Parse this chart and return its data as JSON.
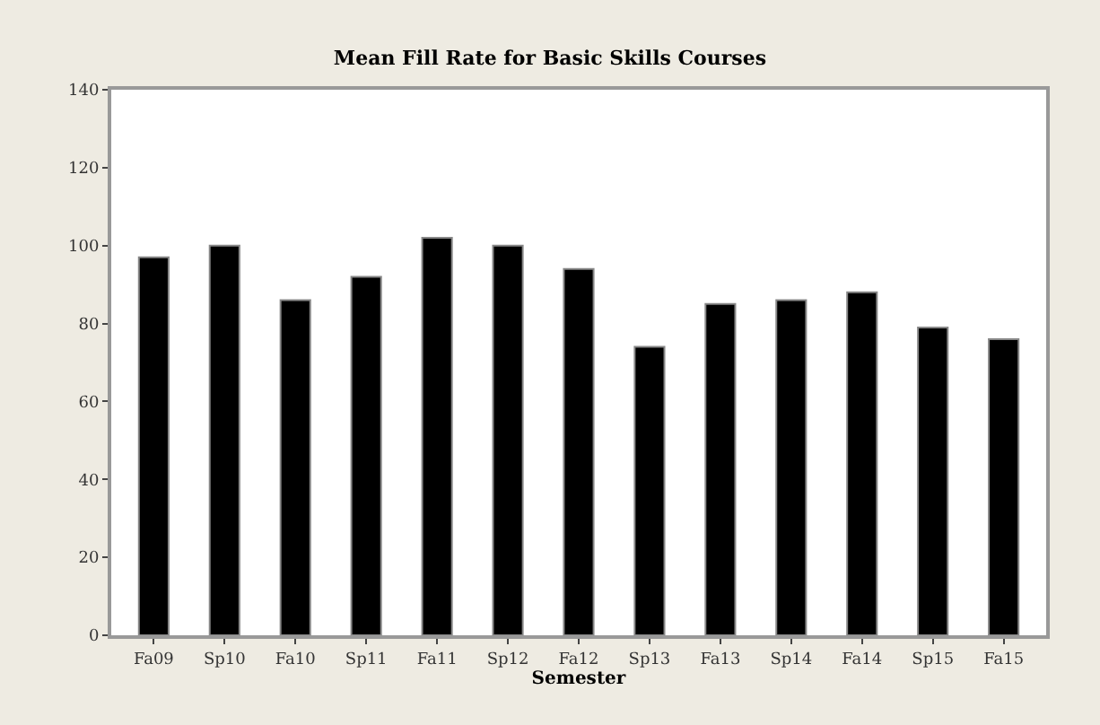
{
  "chart_data": {
    "type": "bar",
    "title": "Mean Fill Rate for Basic Skills Courses",
    "xlabel": "Semester",
    "categories": [
      "Fa09",
      "Sp10",
      "Fa10",
      "Sp11",
      "Fa11",
      "Sp12",
      "Fa12",
      "Sp13",
      "Fa13",
      "Sp14",
      "Fa14",
      "Sp15",
      "Fa15"
    ],
    "values": [
      97,
      100,
      86,
      92,
      102,
      100,
      94,
      74,
      85,
      86,
      88,
      79,
      76
    ],
    "color": "#000000",
    "ylim": [
      0,
      140
    ],
    "yticks": [
      0,
      20,
      40,
      60,
      80,
      100,
      120,
      140
    ]
  }
}
